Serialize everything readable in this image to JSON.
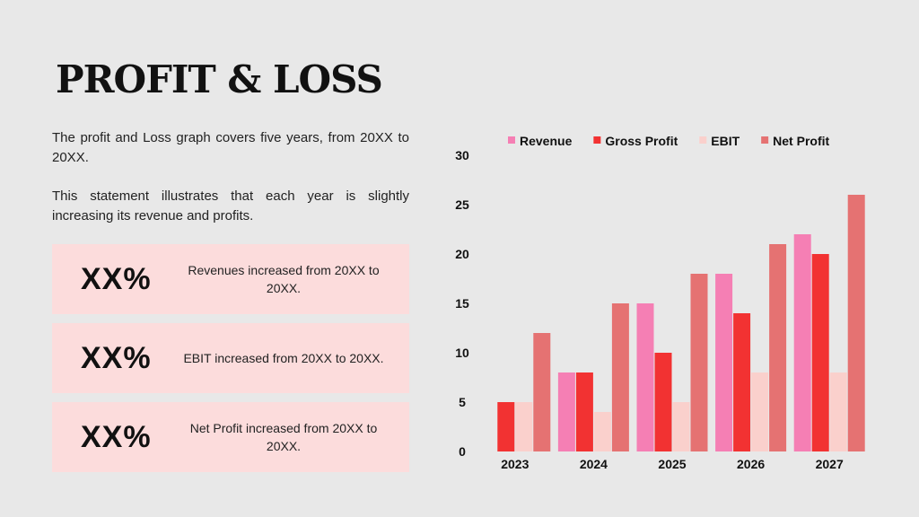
{
  "title": "PROFIT & LOSS",
  "description": {
    "paragraph1": "The profit and Loss graph covers five years, from 20XX to 20XX.",
    "paragraph2": "This statement illustrates that each year is slightly increasing its revenue and profits."
  },
  "stats": [
    {
      "value": "XX%",
      "text": "Revenues increased from 20XX to 20XX."
    },
    {
      "value": "XX%",
      "text": "EBIT increased from 20XX to 20XX."
    },
    {
      "value": "XX%",
      "text": "Net Profit increased from 20XX to 20XX."
    }
  ],
  "colors": {
    "background": "#e8e8e8",
    "card": "#fcdcdc",
    "revenue": "#f57fb4",
    "gross_profit": "#f23232",
    "ebit": "#fad0cc",
    "net_profit": "#e57272"
  },
  "chart_data": {
    "type": "bar",
    "categories": [
      "2023",
      "2024",
      "2025",
      "2026",
      "2027"
    ],
    "series": [
      {
        "name": "Revenue",
        "values": [
          0,
          8,
          15,
          18,
          22
        ],
        "color": "#f57fb4"
      },
      {
        "name": "Gross Profit",
        "values": [
          5,
          8,
          10,
          14,
          20
        ],
        "color": "#f23232"
      },
      {
        "name": "EBIT",
        "values": [
          5,
          4,
          5,
          8,
          8
        ],
        "color": "#fad0cc"
      },
      {
        "name": "Net Profit",
        "values": [
          12,
          15,
          18,
          21,
          26
        ],
        "color": "#e57272"
      }
    ],
    "yticks": [
      0,
      5,
      10,
      15,
      20,
      25,
      30
    ],
    "ylim": [
      0,
      30
    ],
    "grid": false,
    "legend": "top"
  }
}
